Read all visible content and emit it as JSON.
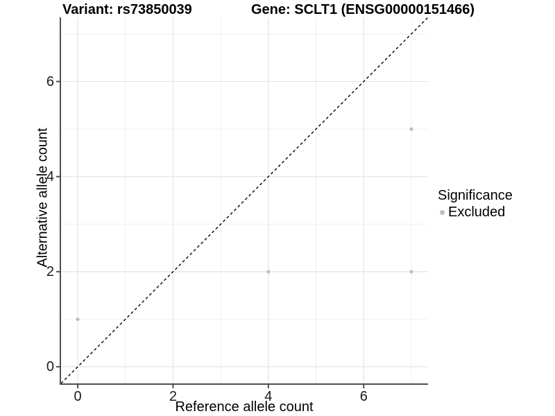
{
  "figure": {
    "background": "#ffffff"
  },
  "chart_data": {
    "type": "scatter",
    "title_left": "Variant: rs73850039",
    "title_right": "Gene: SCLT1 (ENSG00000151466)",
    "xlabel": "Reference allele count",
    "ylabel": "Alternative allele count",
    "xlim": [
      -0.35,
      7.35
    ],
    "ylim": [
      -0.35,
      7.35
    ],
    "x_ticks": [
      0,
      2,
      4,
      6
    ],
    "y_ticks": [
      0,
      2,
      4,
      6
    ],
    "x_minor_breaks": [
      1,
      3,
      5,
      7
    ],
    "y_minor_breaks": [
      1,
      3,
      5,
      7
    ],
    "grid": "major and minor, light grey on white",
    "identity_line": {
      "slope": 1,
      "intercept": 0,
      "style": "dashed",
      "color": "#000000"
    },
    "series": [
      {
        "name": "Excluded",
        "color": "#bebebe",
        "point_radius": 2.6,
        "points": [
          [
            0,
            1
          ],
          [
            4,
            2
          ],
          [
            7,
            2
          ],
          [
            7,
            5
          ]
        ]
      }
    ],
    "legend": {
      "title": "Significance",
      "position": "right",
      "entries": [
        {
          "label": "Excluded",
          "color": "#bebebe"
        }
      ]
    },
    "style": {
      "axis_line_color": "#4d4d4d",
      "axis_line_width": 2,
      "tick_length": 5,
      "grid_major_color": "#e4e4e4",
      "grid_minor_color": "#f0f0f0",
      "tick_label_color": "#1a1a1a"
    }
  }
}
